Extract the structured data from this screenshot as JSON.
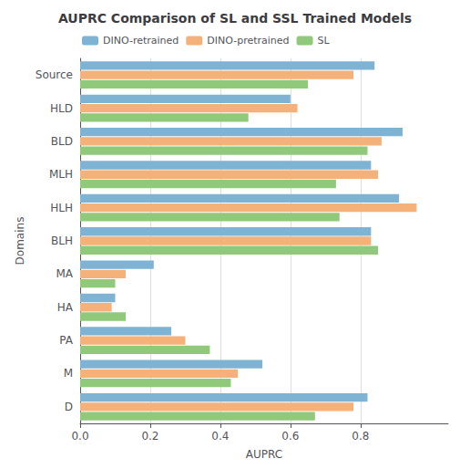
{
  "chart_data": {
    "type": "bar",
    "orientation": "horizontal",
    "title": "AUPRC Comparison of SL and SSL Trained Models",
    "xlabel": "AUPRC",
    "ylabel": "Domains",
    "categories": [
      "Source",
      "HLD",
      "BLD",
      "MLH",
      "HLH",
      "BLH",
      "MA",
      "HA",
      "PA",
      "M",
      "D"
    ],
    "series": [
      {
        "name": "DINO-retrained",
        "color": "#7fb3d3",
        "values": [
          0.84,
          0.6,
          0.92,
          0.83,
          0.91,
          0.83,
          0.21,
          0.1,
          0.26,
          0.52,
          0.82
        ]
      },
      {
        "name": "DINO-pretrained",
        "color": "#f4b27a",
        "values": [
          0.78,
          0.62,
          0.86,
          0.85,
          0.96,
          0.83,
          0.13,
          0.09,
          0.3,
          0.45,
          0.78
        ]
      },
      {
        "name": "SL",
        "color": "#90c97a",
        "values": [
          0.65,
          0.48,
          0.82,
          0.73,
          0.74,
          0.85,
          0.1,
          0.13,
          0.37,
          0.43,
          0.67
        ]
      }
    ],
    "xlim": [
      0.0,
      1.05
    ],
    "xticks": [
      {
        "value": 0,
        "label": "0.0"
      },
      0.2,
      0.4,
      0.6,
      0.8
    ],
    "grid": true,
    "legend": "upper left"
  }
}
